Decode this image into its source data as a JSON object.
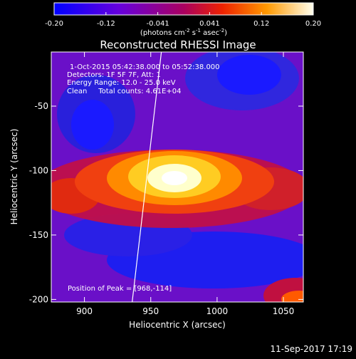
{
  "chart_data": {
    "type": "heatmap",
    "title": "Reconstructed RHESSI Image",
    "colorbar": {
      "ticks": [
        "-0.20",
        "-0.12",
        "-0.041",
        "0.041",
        "0.12",
        "0.20"
      ],
      "range": [
        -0.2,
        0.2
      ],
      "units_prefix": "(photons cm",
      "units_exp1": "-2",
      "units_mid1": " s",
      "units_exp2": "-1",
      "units_mid2": " asec",
      "units_exp3": "-2",
      "units_suffix": ")"
    },
    "xlabel": "Heliocentric X (arcsec)",
    "ylabel": "Heliocentric Y (arcsec)",
    "xlim": [
      875,
      1065
    ],
    "ylim": [
      -202,
      -8
    ],
    "xticks": [
      900,
      950,
      1000,
      1050
    ],
    "yticks": [
      -50,
      -100,
      -150,
      -200
    ],
    "annotations": [
      "1-Oct-2015 05:42:38.000 to 05:52:38.000",
      "Detectors: 1F 5F 7F, Att: 1",
      "Energy Range: 12.0 - 25.0 keV",
      "Clean     Total counts: 4.61E+04",
      "Position of Peak = [968,-114]"
    ],
    "peak": {
      "x": 968,
      "y": -114
    },
    "limb_line": {
      "x_start": 936,
      "y_start": -202,
      "x_end": 958,
      "y_end": -8
    }
  },
  "footer": {
    "timestamp": "11-Sep-2017 17:19"
  },
  "colors": {
    "background": "#000000",
    "foreground": "#ffffff"
  }
}
